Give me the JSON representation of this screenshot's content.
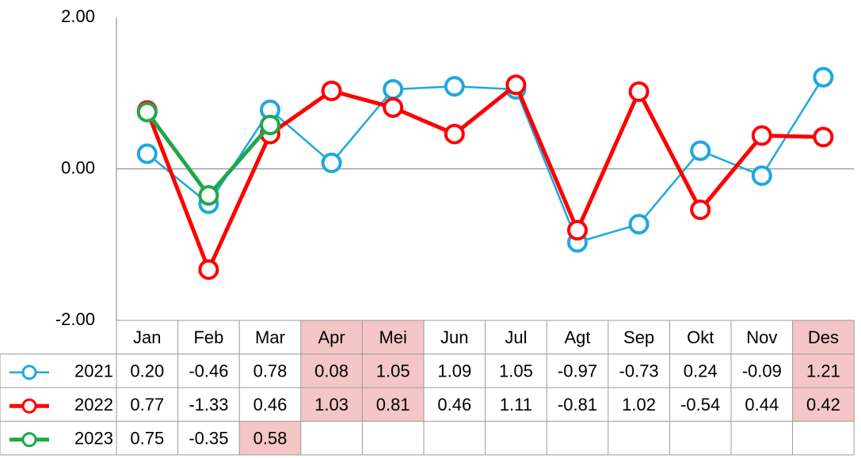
{
  "chart_data": {
    "type": "line",
    "categories": [
      "Jan",
      "Feb",
      "Mar",
      "Apr",
      "Mei",
      "Jun",
      "Jul",
      "Agt",
      "Sep",
      "Okt",
      "Nov",
      "Des"
    ],
    "ylim": [
      -2,
      2
    ],
    "yticks": [
      {
        "value": -2,
        "label": "-2.00"
      },
      {
        "value": 0,
        "label": "0.00"
      },
      {
        "value": 2,
        "label": "2.00"
      }
    ],
    "highlight_color": "#f4c6c6",
    "highlight_categories": [
      3,
      4,
      11
    ],
    "series": [
      {
        "name": "2021",
        "color": "#1ea7e1",
        "width": 2.5,
        "values": [
          0.2,
          -0.46,
          0.78,
          0.08,
          1.05,
          1.09,
          1.05,
          -0.97,
          -0.73,
          0.24,
          -0.09,
          1.21
        ],
        "value_labels": [
          "0.20",
          "-0.46",
          "0.78",
          "0.08",
          "1.05",
          "1.09",
          "1.05",
          "-0.97",
          "-0.73",
          "0.24",
          "-0.09",
          "1.21"
        ],
        "highlight": [
          3,
          4,
          11
        ]
      },
      {
        "name": "2022",
        "color": "#ff0000",
        "width": 5,
        "values": [
          0.77,
          -1.33,
          0.46,
          1.03,
          0.81,
          0.46,
          1.11,
          -0.81,
          1.02,
          -0.54,
          0.44,
          0.42
        ],
        "value_labels": [
          "0.77",
          "-1.33",
          "0.46",
          "1.03",
          "0.81",
          "0.46",
          "1.11",
          "-0.81",
          "1.02",
          "-0.54",
          "0.44",
          "0.42"
        ],
        "highlight": [
          3,
          4,
          11
        ]
      },
      {
        "name": "2023",
        "color": "#1fa84a",
        "width": 5,
        "values": [
          0.75,
          -0.35,
          0.58,
          null,
          null,
          null,
          null,
          null,
          null,
          null,
          null,
          null
        ],
        "value_labels": [
          "0.75",
          "-0.35",
          "0.58",
          null,
          null,
          null,
          null,
          null,
          null,
          null,
          null,
          null
        ],
        "highlight": [
          2
        ]
      }
    ]
  }
}
